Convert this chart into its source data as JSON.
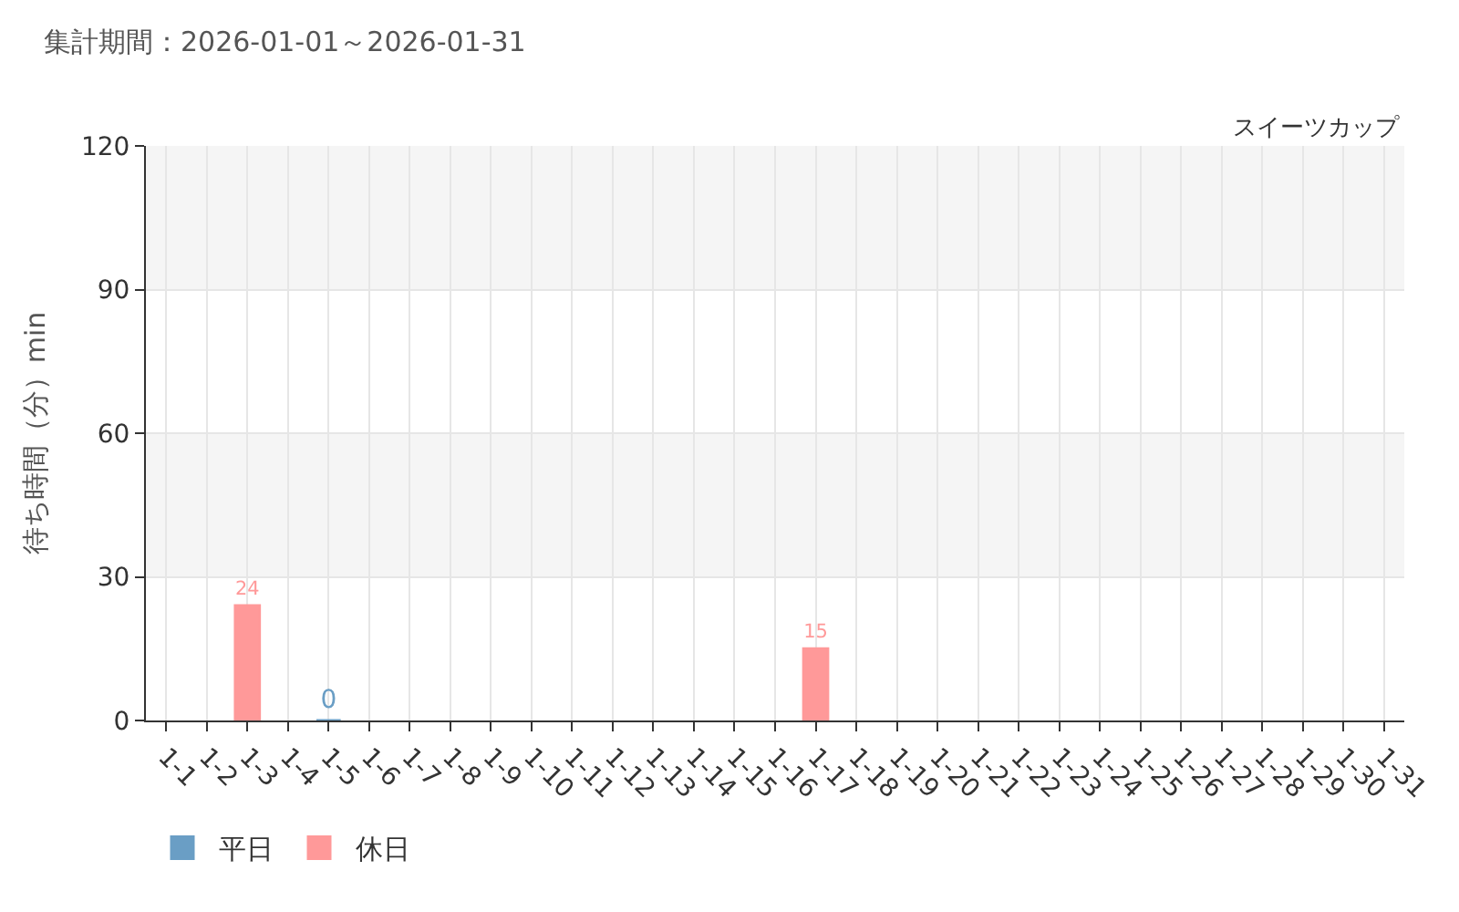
{
  "chart_data": {
    "type": "bar",
    "title": "集計期間：2026-01-01～2026-01-31",
    "subtitle": "スイーツカップ",
    "ylabel": "待ち時間（分）min",
    "categories": [
      "1-1",
      "1-2",
      "1-3",
      "1-4",
      "1-5",
      "1-6",
      "1-7",
      "1-8",
      "1-9",
      "1-10",
      "1-11",
      "1-12",
      "1-13",
      "1-14",
      "1-15",
      "1-16",
      "1-17",
      "1-18",
      "1-19",
      "1-20",
      "1-21",
      "1-22",
      "1-23",
      "1-24",
      "1-25",
      "1-26",
      "1-27",
      "1-28",
      "1-29",
      "1-30",
      "1-31"
    ],
    "series": [
      {
        "name": "平日",
        "color": "#6a9ec5",
        "values": [
          null,
          null,
          null,
          null,
          0,
          null,
          null,
          null,
          null,
          null,
          null,
          null,
          null,
          null,
          null,
          null,
          null,
          null,
          null,
          null,
          null,
          null,
          null,
          null,
          null,
          null,
          null,
          null,
          null,
          null,
          null
        ]
      },
      {
        "name": "休日",
        "color": "#ff9999",
        "values": [
          null,
          null,
          24,
          null,
          null,
          null,
          null,
          null,
          null,
          null,
          null,
          null,
          null,
          null,
          null,
          null,
          15,
          null,
          null,
          null,
          null,
          null,
          null,
          null,
          null,
          null,
          null,
          null,
          null,
          null,
          null
        ]
      }
    ],
    "ylim": [
      0,
      120
    ],
    "yticks": [
      0,
      30,
      60,
      90,
      120
    ],
    "grid": true,
    "data_labels": true,
    "legend": "bottom left"
  }
}
